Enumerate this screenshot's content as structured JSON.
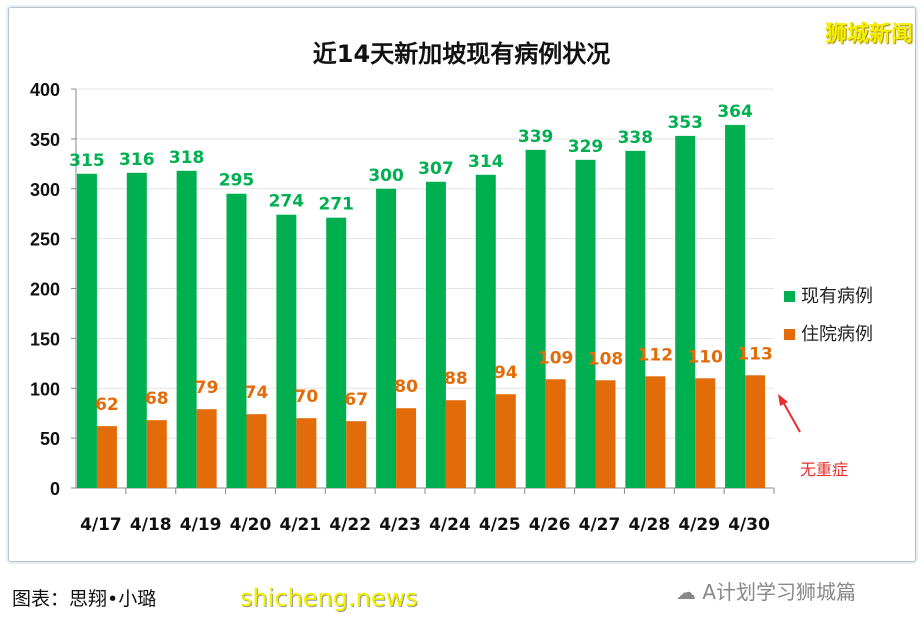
{
  "logo": "狮城新闻",
  "caption": "图表：思翔•小璐",
  "watermark": "shicheng.news",
  "wechat_label": "A计划学习狮城篇",
  "annotation": "无重症",
  "chart_data": {
    "type": "bar",
    "title": "近14天新加坡现有病例状况",
    "categories": [
      "4/17",
      "4/18",
      "4/19",
      "4/20",
      "4/21",
      "4/22",
      "4/23",
      "4/24",
      "4/25",
      "4/26",
      "4/27",
      "4/28",
      "4/29",
      "4/30"
    ],
    "series": [
      {
        "name": "现有病例",
        "color": "#00b050",
        "values": [
          315,
          316,
          318,
          295,
          274,
          271,
          300,
          307,
          314,
          339,
          329,
          338,
          353,
          364
        ]
      },
      {
        "name": "住院病例",
        "color": "#e36c0a",
        "values": [
          62,
          68,
          79,
          74,
          70,
          67,
          80,
          88,
          94,
          109,
          108,
          112,
          110,
          113
        ]
      }
    ],
    "ylim": [
      0,
      400
    ],
    "yticks": [
      0,
      50,
      100,
      150,
      200,
      250,
      300,
      350,
      400
    ],
    "grid": true,
    "legend": "right",
    "label_colors": {
      "现有病例": "#00b050",
      "住院病例": "#e36c0a"
    }
  }
}
